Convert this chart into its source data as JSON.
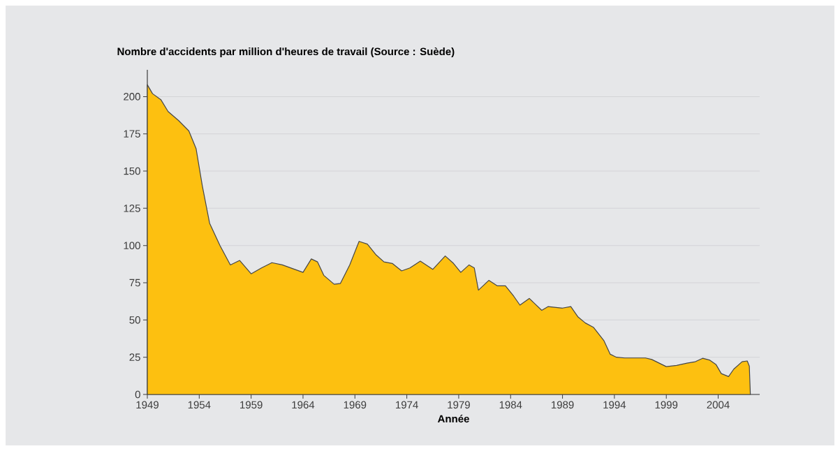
{
  "chart_data": {
    "type": "area",
    "title": "Nombre d'accidents par million d'heures de travail (Source : Suède)",
    "xlabel": "Année",
    "series": [
      {
        "color": "#fdc010",
        "x": [
          1949,
          1949.5,
          1950.3,
          1951,
          1952,
          1953,
          1953.7,
          1954.3,
          1955,
          1956,
          1957,
          1957.9,
          1959,
          1960,
          1961,
          1962,
          1964,
          1964.8,
          1965.4,
          1966,
          1967,
          1967.6,
          1968.5,
          1969.4,
          1970.2,
          1971,
          1971.8,
          1972.6,
          1973.5,
          1974.3,
          1975.3,
          1976.5,
          1977.7,
          1978.5,
          1979.2,
          1980,
          1980.5,
          1980.9,
          1981.9,
          1982.7,
          1983.5,
          1984.3,
          1984.9,
          1985.8,
          1987,
          1987.6,
          1989,
          1989.8,
          1990.5,
          1991.2,
          1992,
          1993,
          1993.6,
          1994.2,
          1995,
          1997,
          1997.6,
          1999,
          2000,
          2001,
          2001.8,
          2002.5,
          2003.2,
          2003.8,
          2004.3,
          2005,
          2005.5,
          2006.3,
          2006.8,
          2007.0,
          2007.1
        ],
        "values": [
          208,
          202,
          198,
          190,
          184,
          177,
          165,
          140,
          115,
          100,
          87,
          90,
          81,
          85,
          88.5,
          87,
          82,
          91,
          89,
          80,
          74,
          74.5,
          87,
          102.8,
          101,
          94,
          89,
          88,
          83,
          85,
          89.5,
          84,
          93,
          88,
          82,
          87,
          85,
          70,
          76.6,
          73,
          73,
          66,
          60,
          64.5,
          56.5,
          59,
          58,
          59,
          52,
          48,
          45,
          36,
          27,
          25,
          24.5,
          24.5,
          23.5,
          18.7,
          19.5,
          21,
          22,
          24.3,
          23,
          20,
          14,
          12,
          17,
          22,
          22.5,
          19,
          0
        ]
      }
    ],
    "xlim": [
      1949,
      2008
    ],
    "ylim": [
      0,
      218
    ],
    "xticks": [
      1949,
      1954,
      1959,
      1964,
      1969,
      1974,
      1979,
      1984,
      1989,
      1994,
      1999,
      2004
    ],
    "yticks": [
      0,
      25,
      50,
      75,
      100,
      125,
      150,
      175,
      200
    ],
    "grid": "y"
  }
}
